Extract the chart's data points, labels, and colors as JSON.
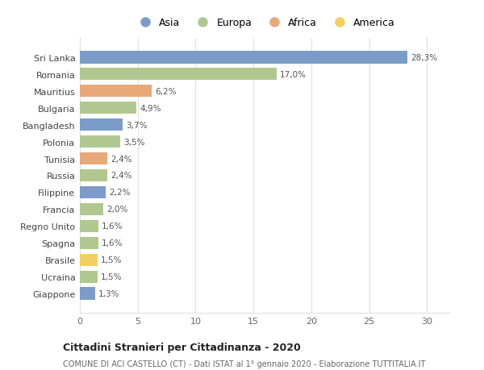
{
  "countries": [
    "Sri Lanka",
    "Romania",
    "Mauritius",
    "Bulgaria",
    "Bangladesh",
    "Polonia",
    "Tunisia",
    "Russia",
    "Filippine",
    "Francia",
    "Regno Unito",
    "Spagna",
    "Brasile",
    "Ucraina",
    "Giappone"
  ],
  "values": [
    28.3,
    17.0,
    6.2,
    4.9,
    3.7,
    3.5,
    2.4,
    2.4,
    2.2,
    2.0,
    1.6,
    1.6,
    1.5,
    1.5,
    1.3
  ],
  "continents": [
    "Asia",
    "Europa",
    "Africa",
    "Europa",
    "Asia",
    "Europa",
    "Africa",
    "Europa",
    "Asia",
    "Europa",
    "Europa",
    "Europa",
    "America",
    "Europa",
    "Asia"
  ],
  "colors": {
    "Asia": "#7b9cc9",
    "Europa": "#b0c890",
    "Africa": "#e8a878",
    "America": "#f0d060"
  },
  "xlim": [
    0,
    32
  ],
  "xticks": [
    0,
    5,
    10,
    15,
    20,
    25,
    30
  ],
  "title": "Cittadini Stranieri per Cittadinanza - 2020",
  "subtitle": "COMUNE DI ACI CASTELLO (CT) - Dati ISTAT al 1° gennaio 2020 - Elaborazione TUTTITALIA.IT",
  "bg_color": "#ffffff",
  "grid_color": "#e0e0e0",
  "bar_height": 0.75
}
